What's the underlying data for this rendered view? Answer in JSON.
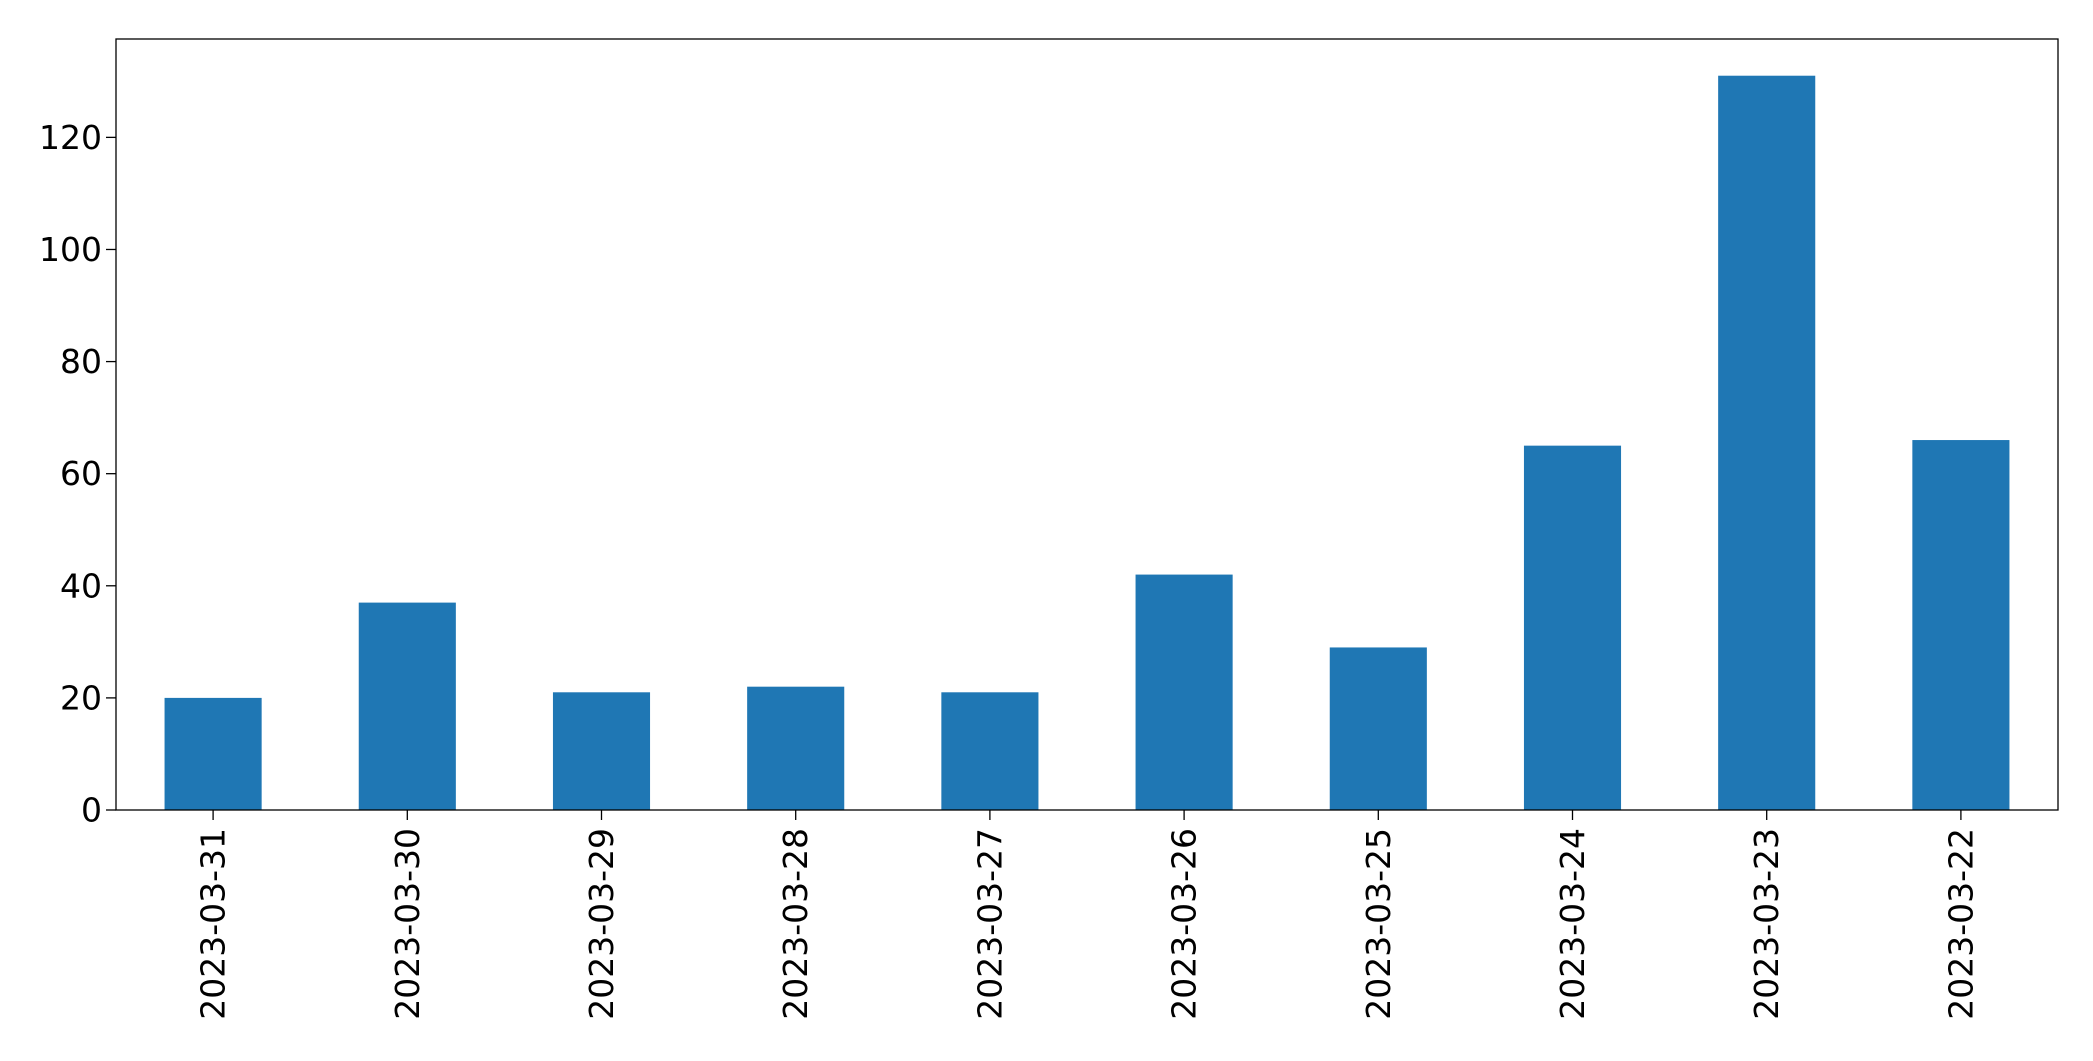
{
  "chart_data": {
    "type": "bar",
    "title": "",
    "xlabel": "",
    "ylabel": "",
    "categories": [
      "2023-03-31",
      "2023-03-30",
      "2023-03-29",
      "2023-03-28",
      "2023-03-27",
      "2023-03-26",
      "2023-03-25",
      "2023-03-24",
      "2023-03-23",
      "2023-03-22"
    ],
    "values": [
      20,
      37,
      21,
      22,
      21,
      42,
      29,
      65,
      131,
      66
    ],
    "ylim": [
      0,
      137.55
    ],
    "yticks": [
      0,
      20,
      40,
      60,
      80,
      100,
      120
    ],
    "ytick_labels": [
      "0",
      "20",
      "40",
      "60",
      "80",
      "100",
      "120"
    ],
    "grid": false,
    "legend": "none",
    "bar_color": "#1f77b4",
    "axis_color": "#000000",
    "background_color": "#ffffff"
  }
}
